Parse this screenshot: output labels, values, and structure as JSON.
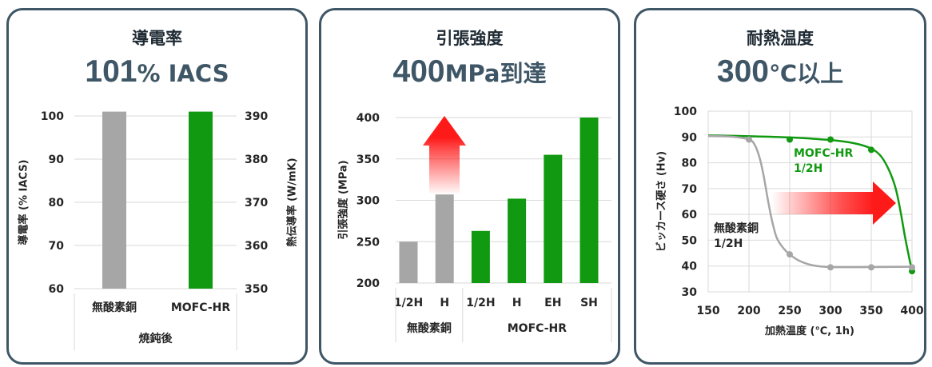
{
  "colors": {
    "frame": "#3e5666",
    "title": "#1e2a33"
  },
  "panels": [
    {
      "title": "導電率",
      "headline_number": "101",
      "headline_unit": "% IACS"
    },
    {
      "title": "引張強度",
      "headline_number": "400",
      "headline_unit": "MPa到達"
    },
    {
      "title": "耐熱温度",
      "headline_number": "300",
      "headline_unit": "℃以上"
    }
  ],
  "chart_data": [
    {
      "type": "bar",
      "categories": [
        "無酸素銅",
        "MOFC-HR"
      ],
      "group_label": "焼鈍後",
      "values": [
        101,
        101
      ],
      "bar_colors": [
        "#a6a6a6",
        "#119a11"
      ],
      "ylabel": "導電率 (% IACS)",
      "ylim": [
        60,
        100
      ],
      "y_ticks": [
        60,
        70,
        80,
        90,
        100
      ],
      "y2label": "熱伝導率 (W/mK)",
      "y2lim": [
        350,
        390
      ],
      "y2_ticks": [
        350,
        360,
        370,
        380,
        390
      ],
      "grid": true
    },
    {
      "type": "bar",
      "groups": [
        {
          "label": "無酸素銅",
          "color": "#a6a6a6",
          "categories": [
            "1/2H",
            "H"
          ],
          "values": [
            250,
            307
          ]
        },
        {
          "label": "MOFC-HR",
          "color": "#119a11",
          "categories": [
            "1/2H",
            "H",
            "EH",
            "SH"
          ],
          "values": [
            263,
            302,
            355,
            400
          ]
        }
      ],
      "ylabel": "引張強度 (MPa)",
      "ylim": [
        200,
        400
      ],
      "y_ticks": [
        200,
        250,
        300,
        350,
        400
      ],
      "grid": true,
      "arrow_icon": "up-arrow-icon",
      "arrow_color": "#ff1a1a"
    },
    {
      "type": "line",
      "xlabel": "加熱温度 (℃, 1h)",
      "ylabel": "ビッカース硬さ (Hv)",
      "xlim": [
        150,
        400
      ],
      "x_ticks": [
        150,
        200,
        250,
        300,
        350,
        400
      ],
      "ylim": [
        30,
        100
      ],
      "y_ticks": [
        30,
        40,
        50,
        60,
        70,
        80,
        90,
        100
      ],
      "grid": true,
      "series": [
        {
          "name_lines": [
            "MOFC-HR",
            "1/2H"
          ],
          "color": "#119a11",
          "label_color": "#119a11",
          "points": [
            [
              250,
              89
            ],
            [
              300,
              89
            ],
            [
              350,
              85
            ],
            [
              400,
              38
            ]
          ],
          "curve": [
            [
              150,
              90.6
            ],
            [
              200,
              90.3
            ],
            [
              250,
              89.8
            ],
            [
              300,
              88.8
            ],
            [
              330,
              87.5
            ],
            [
              350,
              85.5
            ],
            [
              362,
              82.5
            ],
            [
              372,
              77
            ],
            [
              380,
              70
            ],
            [
              386,
              61
            ],
            [
              391,
              52
            ],
            [
              396,
              44
            ],
            [
              400,
              38
            ]
          ]
        },
        {
          "name_lines": [
            "無酸素銅",
            "1/2H"
          ],
          "color": "#a6a6a6",
          "label_color": "#262626",
          "points": [
            [
              200,
              89
            ],
            [
              250,
              44.5
            ],
            [
              300,
              39.5
            ],
            [
              350,
              39.5
            ],
            [
              400,
              39.5
            ]
          ],
          "curve": [
            [
              150,
              90.4
            ],
            [
              180,
              90.1
            ],
            [
              200,
              89
            ],
            [
              207,
              87
            ],
            [
              213,
              82
            ],
            [
              218,
              75
            ],
            [
              223,
              66
            ],
            [
              228,
              58
            ],
            [
              234,
              51
            ],
            [
              242,
              47
            ],
            [
              250,
              44.5
            ],
            [
              262,
              42
            ],
            [
              278,
              40.3
            ],
            [
              300,
              39.6
            ],
            [
              350,
              39.6
            ],
            [
              400,
              39.7
            ]
          ]
        }
      ],
      "arrow_icon": "right-arrow-icon",
      "arrow_color": "#ff1a1a"
    }
  ]
}
